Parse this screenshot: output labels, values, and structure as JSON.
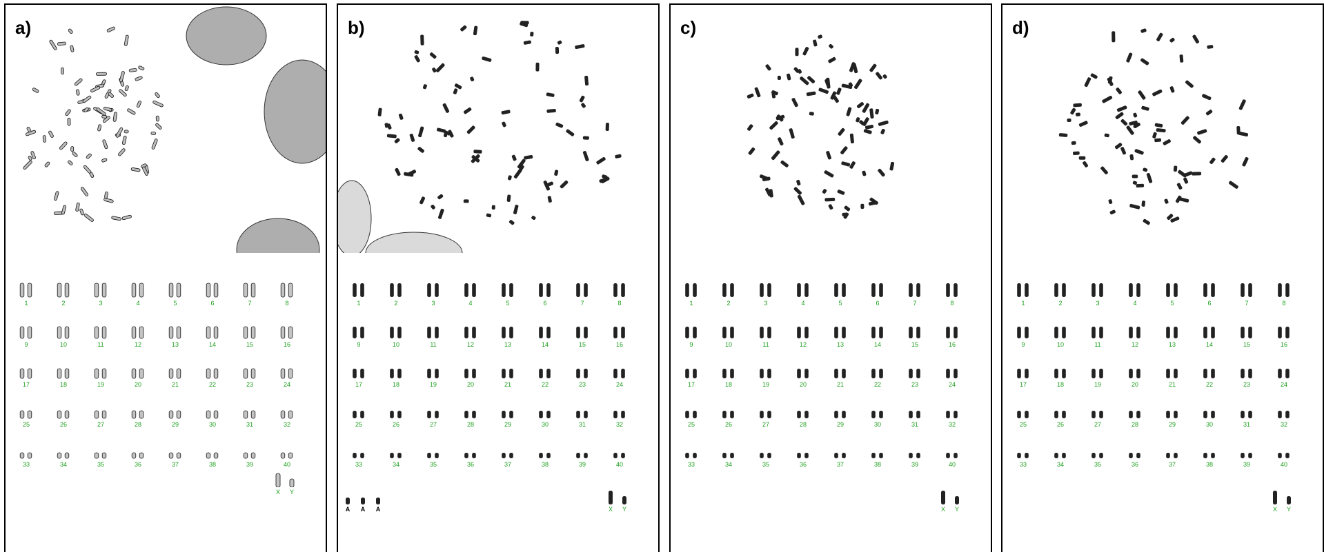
{
  "figure": {
    "panels": [
      {
        "id": "a",
        "label": "a)",
        "style": "outline",
        "numbers": [
          "1",
          "2",
          "3",
          "4",
          "5",
          "6",
          "7",
          "8",
          "9",
          "10",
          "11",
          "12",
          "13",
          "14",
          "15",
          "16",
          "17",
          "18",
          "19",
          "20",
          "21",
          "22",
          "23",
          "24",
          "25",
          "26",
          "27",
          "28",
          "29",
          "30",
          "31",
          "32",
          "33",
          "34",
          "35",
          "36",
          "37",
          "38",
          "39",
          "40"
        ],
        "sex_labels": [
          "X",
          "Y"
        ],
        "extra_labels": []
      },
      {
        "id": "b",
        "label": "b)",
        "style": "solid",
        "numbers": [
          "1",
          "2",
          "3",
          "4",
          "5",
          "6",
          "7",
          "8",
          "9",
          "10",
          "11",
          "12",
          "13",
          "14",
          "15",
          "16",
          "17",
          "18",
          "19",
          "20",
          "21",
          "22",
          "23",
          "24",
          "25",
          "26",
          "27",
          "28",
          "29",
          "30",
          "31",
          "32",
          "33",
          "34",
          "35",
          "36",
          "37",
          "38",
          "39",
          "40"
        ],
        "sex_labels": [
          "X",
          "Y"
        ],
        "extra_labels": [
          "A",
          "A",
          "A"
        ]
      },
      {
        "id": "c",
        "label": "c)",
        "style": "solid",
        "numbers": [
          "1",
          "2",
          "3",
          "4",
          "5",
          "6",
          "7",
          "8",
          "9",
          "10",
          "11",
          "12",
          "13",
          "14",
          "15",
          "16",
          "17",
          "18",
          "19",
          "20",
          "21",
          "22",
          "23",
          "24",
          "25",
          "26",
          "27",
          "28",
          "29",
          "30",
          "31",
          "32",
          "33",
          "34",
          "35",
          "36",
          "37",
          "38",
          "39",
          "40"
        ],
        "sex_labels": [
          "X",
          "Y"
        ],
        "extra_labels": []
      },
      {
        "id": "d",
        "label": "d)",
        "style": "solid",
        "numbers": [
          "1",
          "2",
          "3",
          "4",
          "5",
          "6",
          "7",
          "8",
          "9",
          "10",
          "11",
          "12",
          "13",
          "14",
          "15",
          "16",
          "17",
          "18",
          "19",
          "20",
          "21",
          "22",
          "23",
          "24",
          "25",
          "26",
          "27",
          "28",
          "29",
          "30",
          "31",
          "32",
          "33",
          "34",
          "35",
          "36",
          "37",
          "38",
          "39",
          "40"
        ],
        "sex_labels": [
          "X",
          "Y"
        ],
        "extra_labels": []
      }
    ],
    "colors": {
      "number_label": "#1a9e1a",
      "chromosome": "#222222",
      "nucleus": "#6b6b6b",
      "border": "#000000"
    }
  }
}
